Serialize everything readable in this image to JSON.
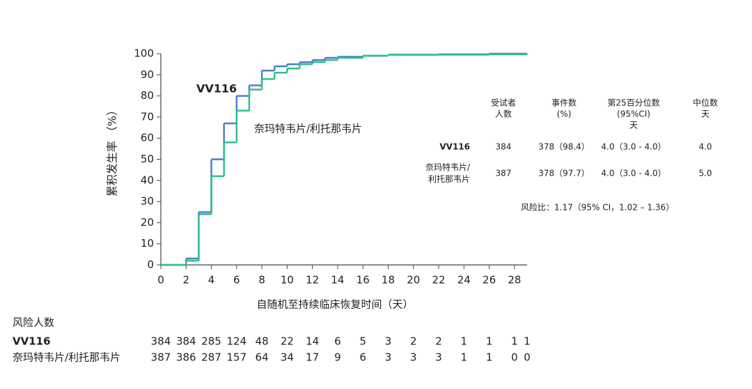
{
  "chart_data": {
    "type": "step",
    "ylabel": "累积发生率 （%）",
    "xlabel": "自随机至持续临床恢复时间（天）",
    "xlim": [
      0,
      29
    ],
    "xticks": [
      0,
      2,
      4,
      6,
      8,
      10,
      12,
      14,
      16,
      18,
      20,
      22,
      24,
      26,
      28
    ],
    "ylim": [
      0,
      100
    ],
    "yticks": [
      0,
      10,
      20,
      30,
      40,
      50,
      60,
      70,
      80,
      90,
      100
    ],
    "series": [
      {
        "name": "VV116",
        "color": "#4a7fc8",
        "x": [
          0,
          2,
          3,
          4,
          5,
          6,
          7,
          8,
          9,
          10,
          11,
          12,
          13,
          14,
          16,
          18,
          22,
          26,
          29
        ],
        "values": [
          0,
          3,
          25,
          50,
          67,
          80,
          85,
          92,
          94,
          95,
          96,
          97,
          98,
          98.5,
          99,
          99.5,
          99.7,
          100,
          100
        ]
      },
      {
        "name": "奈玛特韦片/利托那韦片",
        "color": "#2fbf8c",
        "x": [
          0,
          2,
          3,
          4,
          5,
          6,
          7,
          8,
          9,
          10,
          11,
          12,
          13,
          14,
          16,
          18,
          22,
          26,
          29
        ],
        "values": [
          0,
          2,
          24,
          42,
          58,
          73,
          83,
          88,
          91,
          93,
          95,
          96,
          97,
          98,
          99,
          99.5,
          99.5,
          99.7,
          100
        ]
      }
    ]
  },
  "summary_table": {
    "headers": [
      [
        "受试者",
        "人数"
      ],
      [
        "事件数",
        "(%)"
      ],
      [
        "第25百分位数",
        "(95%CI)",
        "天"
      ],
      [
        "中位数",
        "天"
      ]
    ],
    "rows": [
      [
        [
          "VV116"
        ],
        "384",
        "378（98.4）",
        "4.0（3.0 - 4.0）",
        "4.0"
      ],
      [
        [
          "奈玛特韦片/",
          "利托那韦片"
        ],
        "387",
        "378（97.7）",
        "4.0（3.0 - 4.0）",
        "5.0"
      ]
    ],
    "hazard_ratio": "风险比：1.17（95% CI，1.02 – 1.36）"
  },
  "risk_table": {
    "title": "风险人数",
    "rows": [
      {
        "name": "VV116",
        "counts": [
          384,
          384,
          285,
          124,
          48,
          22,
          14,
          6,
          5,
          3,
          2,
          2,
          1,
          1,
          1,
          1
        ]
      },
      {
        "name": "奈玛特韦片/利托那韦片",
        "counts": [
          387,
          386,
          287,
          157,
          64,
          34,
          17,
          9,
          6,
          3,
          3,
          3,
          1,
          1,
          0,
          0
        ]
      }
    ]
  }
}
